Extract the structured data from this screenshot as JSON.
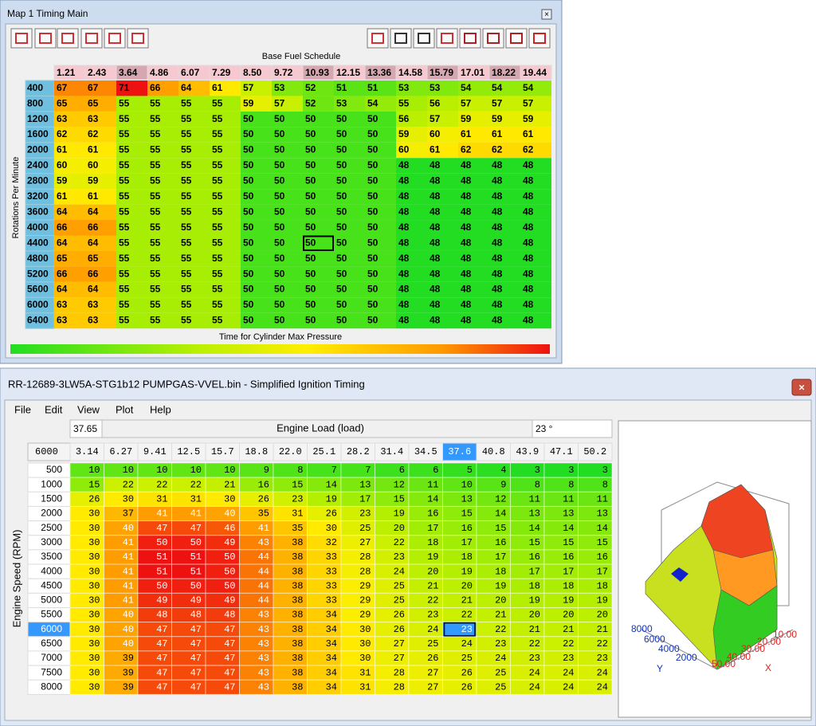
{
  "top_window": {
    "title": "Map 1 Timing Main",
    "table_title": "Base Fuel Schedule",
    "x_label": "Time for Cylinder Max Pressure",
    "y_label": "Rotations Per Minute",
    "columns": [
      "1.21",
      "2.43",
      "3.64",
      "4.86",
      "6.07",
      "7.29",
      "8.50",
      "9.72",
      "10.93",
      "12.15",
      "13.36",
      "14.58",
      "15.79",
      "17.01",
      "18.22",
      "19.44"
    ],
    "rows": [
      {
        "label": "400",
        "values": [
          67,
          67,
          71,
          66,
          64,
          61,
          57,
          53,
          52,
          51,
          51,
          53,
          53,
          54,
          54,
          54
        ]
      },
      {
        "label": "800",
        "values": [
          65,
          65,
          55,
          55,
          55,
          55,
          59,
          57,
          52,
          53,
          54,
          55,
          56,
          57,
          57,
          57
        ]
      },
      {
        "label": "1200",
        "values": [
          63,
          63,
          55,
          55,
          55,
          55,
          50,
          50,
          50,
          50,
          50,
          56,
          57,
          59,
          59,
          59
        ]
      },
      {
        "label": "1600",
        "values": [
          62,
          62,
          55,
          55,
          55,
          55,
          50,
          50,
          50,
          50,
          50,
          59,
          60,
          61,
          61,
          61
        ]
      },
      {
        "label": "2000",
        "values": [
          61,
          61,
          55,
          55,
          55,
          55,
          50,
          50,
          50,
          50,
          50,
          60,
          61,
          62,
          62,
          62
        ]
      },
      {
        "label": "2400",
        "values": [
          60,
          60,
          55,
          55,
          55,
          55,
          50,
          50,
          50,
          50,
          50,
          48,
          48,
          48,
          48,
          48
        ]
      },
      {
        "label": "2800",
        "values": [
          59,
          59,
          55,
          55,
          55,
          55,
          50,
          50,
          50,
          50,
          50,
          48,
          48,
          48,
          48,
          48
        ]
      },
      {
        "label": "3200",
        "values": [
          61,
          61,
          55,
          55,
          55,
          55,
          50,
          50,
          50,
          50,
          50,
          48,
          48,
          48,
          48,
          48
        ]
      },
      {
        "label": "3600",
        "values": [
          64,
          64,
          55,
          55,
          55,
          55,
          50,
          50,
          50,
          50,
          50,
          48,
          48,
          48,
          48,
          48
        ]
      },
      {
        "label": "4000",
        "values": [
          66,
          66,
          55,
          55,
          55,
          55,
          50,
          50,
          50,
          50,
          50,
          48,
          48,
          48,
          48,
          48
        ]
      },
      {
        "label": "4400",
        "values": [
          64,
          64,
          55,
          55,
          55,
          55,
          50,
          50,
          50,
          50,
          50,
          48,
          48,
          48,
          48,
          48
        ]
      },
      {
        "label": "4800",
        "values": [
          65,
          65,
          55,
          55,
          55,
          55,
          50,
          50,
          50,
          50,
          50,
          48,
          48,
          48,
          48,
          48
        ]
      },
      {
        "label": "5200",
        "values": [
          66,
          66,
          55,
          55,
          55,
          55,
          50,
          50,
          50,
          50,
          50,
          48,
          48,
          48,
          48,
          48
        ]
      },
      {
        "label": "5600",
        "values": [
          64,
          64,
          55,
          55,
          55,
          55,
          50,
          50,
          50,
          50,
          50,
          48,
          48,
          48,
          48,
          48
        ]
      },
      {
        "label": "6000",
        "values": [
          63,
          63,
          55,
          55,
          55,
          55,
          50,
          50,
          50,
          50,
          50,
          48,
          48,
          48,
          48,
          48
        ]
      },
      {
        "label": "6400",
        "values": [
          63,
          63,
          55,
          55,
          55,
          55,
          50,
          50,
          50,
          50,
          50,
          48,
          48,
          48,
          48,
          48
        ]
      }
    ]
  },
  "bottom_window": {
    "title": "RR-12689-3LW5A-STG1b12 PUMPGAS-VVEL.bin - Simplified Ignition Timing",
    "menu": [
      "File",
      "Edit",
      "View",
      "Plot",
      "Help"
    ],
    "load_value": "37.65",
    "x_label": "Engine Load (load)",
    "cell_value": "23 °",
    "corner": "6000",
    "y_label": "Engine Speed (RPM)",
    "columns": [
      "3.14",
      "6.27",
      "9.41",
      "12.5",
      "15.7",
      "18.8",
      "22.0",
      "25.1",
      "28.2",
      "31.4",
      "34.5",
      "37.6",
      "40.8",
      "43.9",
      "47.1",
      "50.2"
    ],
    "rows": [
      {
        "label": "500",
        "values": [
          10,
          10,
          10,
          10,
          10,
          9,
          8,
          7,
          7,
          6,
          6,
          5,
          4,
          3,
          3,
          3
        ]
      },
      {
        "label": "1000",
        "values": [
          15,
          22,
          22,
          22,
          21,
          16,
          15,
          14,
          13,
          12,
          11,
          10,
          9,
          8,
          8,
          8
        ]
      },
      {
        "label": "1500",
        "values": [
          26,
          30,
          31,
          31,
          30,
          26,
          23,
          19,
          17,
          15,
          14,
          13,
          12,
          11,
          11,
          11
        ]
      },
      {
        "label": "2000",
        "values": [
          30,
          37,
          41,
          41,
          40,
          35,
          31,
          26,
          23,
          19,
          16,
          15,
          14,
          13,
          13,
          13
        ]
      },
      {
        "label": "2500",
        "values": [
          30,
          40,
          47,
          47,
          46,
          41,
          35,
          30,
          25,
          20,
          17,
          16,
          15,
          14,
          14,
          14
        ]
      },
      {
        "label": "3000",
        "values": [
          30,
          41,
          50,
          50,
          49,
          43,
          38,
          32,
          27,
          22,
          18,
          17,
          16,
          15,
          15,
          15
        ]
      },
      {
        "label": "3500",
        "values": [
          30,
          41,
          51,
          51,
          50,
          44,
          38,
          33,
          28,
          23,
          19,
          18,
          17,
          16,
          16,
          16
        ]
      },
      {
        "label": "4000",
        "values": [
          30,
          41,
          51,
          51,
          50,
          44,
          38,
          33,
          28,
          24,
          20,
          19,
          18,
          17,
          17,
          17
        ]
      },
      {
        "label": "4500",
        "values": [
          30,
          41,
          50,
          50,
          50,
          44,
          38,
          33,
          29,
          25,
          21,
          20,
          19,
          18,
          18,
          18
        ]
      },
      {
        "label": "5000",
        "values": [
          30,
          41,
          49,
          49,
          49,
          44,
          38,
          33,
          29,
          25,
          22,
          21,
          20,
          19,
          19,
          19
        ]
      },
      {
        "label": "5500",
        "values": [
          30,
          40,
          48,
          48,
          48,
          43,
          38,
          34,
          29,
          26,
          23,
          22,
          21,
          20,
          20,
          20
        ]
      },
      {
        "label": "6000",
        "values": [
          30,
          40,
          47,
          47,
          47,
          43,
          38,
          34,
          30,
          26,
          24,
          23,
          22,
          21,
          21,
          21
        ]
      },
      {
        "label": "6500",
        "values": [
          30,
          40,
          47,
          47,
          47,
          43,
          38,
          34,
          30,
          27,
          25,
          24,
          23,
          22,
          22,
          22
        ]
      },
      {
        "label": "7000",
        "values": [
          30,
          39,
          47,
          47,
          47,
          43,
          38,
          34,
          30,
          27,
          26,
          25,
          24,
          23,
          23,
          23
        ]
      },
      {
        "label": "7500",
        "values": [
          30,
          39,
          47,
          47,
          47,
          43,
          38,
          34,
          31,
          28,
          27,
          26,
          25,
          24,
          24,
          24
        ]
      },
      {
        "label": "8000",
        "values": [
          30,
          39,
          47,
          47,
          47,
          43,
          38,
          34,
          31,
          28,
          27,
          26,
          25,
          24,
          24,
          24
        ]
      }
    ],
    "plot_y_ticks": [
      "8000",
      "6000",
      "4000",
      "2000"
    ],
    "plot_y_label": "Y",
    "plot_x_ticks": [
      "10.00",
      "20.00",
      "30.00",
      "40.00",
      "50.00"
    ],
    "plot_x_label": "X"
  }
}
